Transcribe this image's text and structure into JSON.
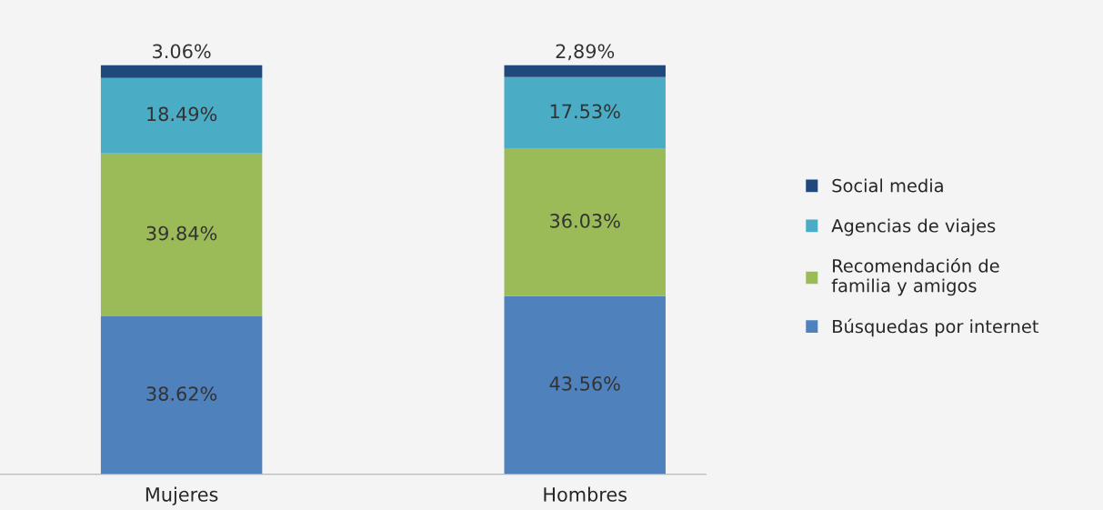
{
  "chart_data": {
    "type": "bar",
    "stacked": true,
    "categories": [
      "Mujeres",
      "Hombres"
    ],
    "series": [
      {
        "name": "Búsquedas por internet",
        "color": "#4f81bd",
        "values": [
          38.62,
          43.56
        ],
        "value_labels": [
          "38.62%",
          "43.56%"
        ]
      },
      {
        "name": "Recomendación de\nfamilia y amigos",
        "color": "#9bbb59",
        "values": [
          39.84,
          36.03
        ],
        "value_labels": [
          "39.84%",
          "36.03%"
        ]
      },
      {
        "name": "Agencias de viajes",
        "color": "#4bacc6",
        "values": [
          18.49,
          17.53
        ],
        "value_labels": [
          "18.49%",
          "17.53%"
        ]
      },
      {
        "name": "Social media",
        "color": "#1f497d",
        "values": [
          3.06,
          2.89
        ],
        "value_labels": [
          "3.06%",
          "2,89%"
        ]
      }
    ],
    "tick_labels": "x",
    "grid": false,
    "legend": "right"
  }
}
